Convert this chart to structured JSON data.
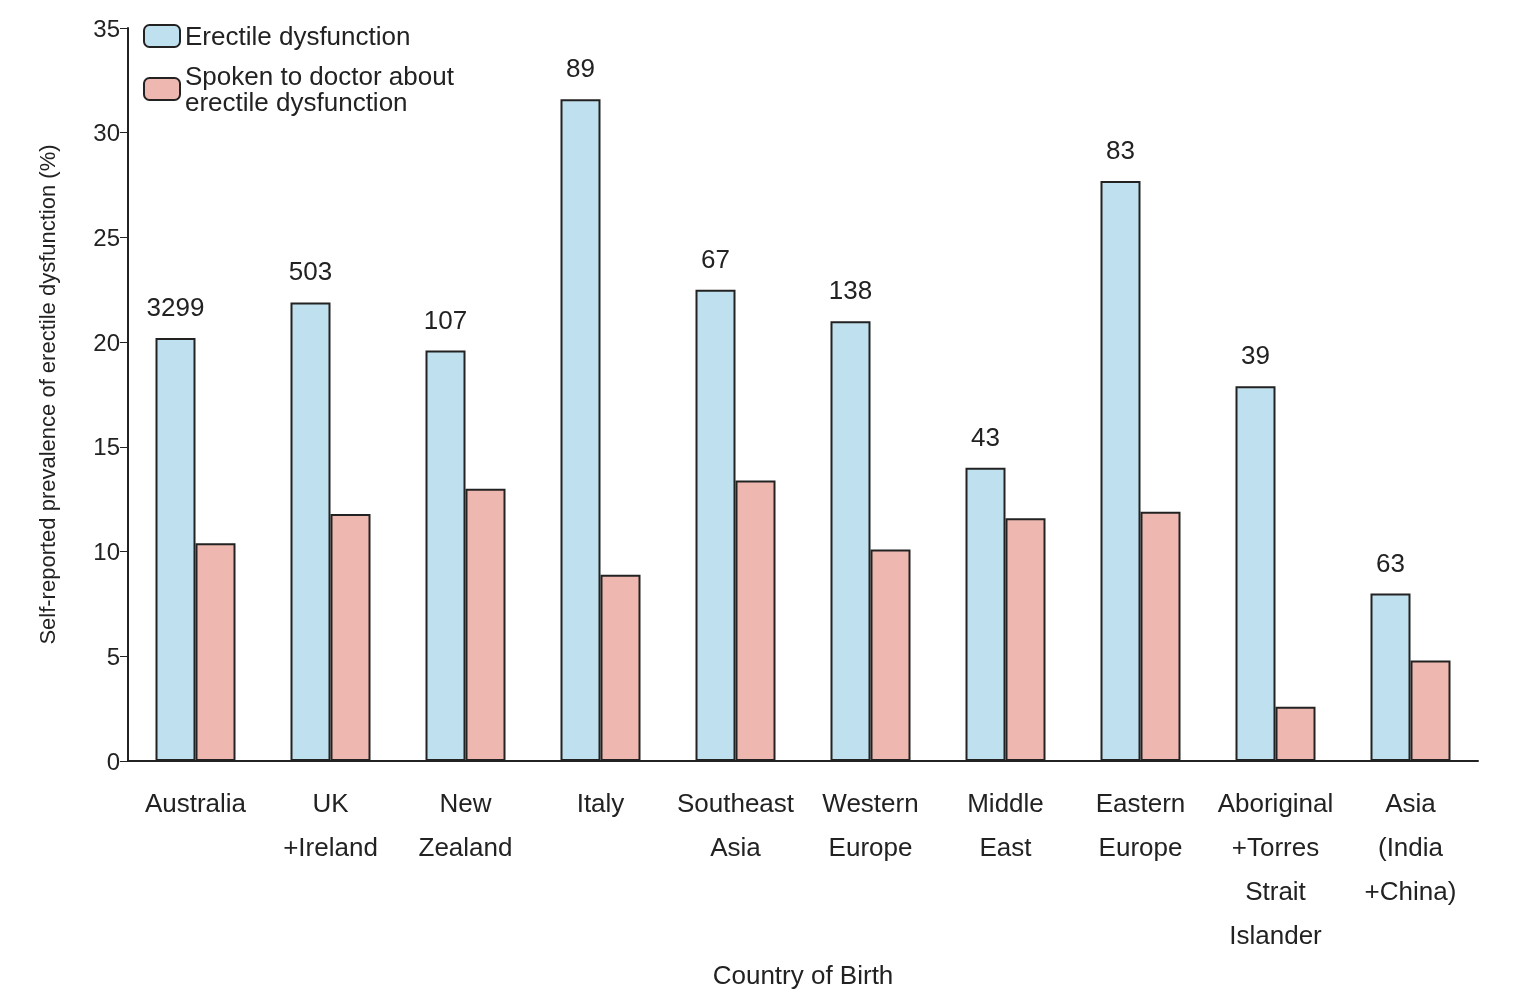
{
  "chart_data": {
    "type": "bar",
    "xlabel": "Country of Birth",
    "ylabel": "Self-reported prevalence of erectile dysfunction (%)",
    "categories": [
      "Australia",
      "UK\n+Ireland",
      "New\nZealand",
      "Italy",
      "Southeast\nAsia",
      "Western\nEurope",
      "Middle\nEast",
      "Eastern\nEurope",
      "Aboriginal\n+Torres\nStrait\nIslander",
      "Asia\n(India\n+China)"
    ],
    "series": [
      {
        "name": "Erectile dysfunction",
        "color": "#bfe0ee",
        "values": [
          20.2,
          21.9,
          19.6,
          31.6,
          22.5,
          21.0,
          14.0,
          27.7,
          17.9,
          8.0
        ]
      },
      {
        "name": "Spoken to doctor about erectile dysfunction",
        "color": "#eeb8b0",
        "values": [
          10.4,
          11.8,
          13.0,
          8.9,
          13.4,
          10.1,
          11.6,
          11.9,
          2.6,
          4.8
        ]
      }
    ],
    "annotations": [
      {
        "text": "3299",
        "x": "Australia",
        "y": 20.2
      },
      {
        "text": "503",
        "x": "UK\n+Ireland",
        "y": 21.9
      },
      {
        "text": "107",
        "x": "New\nZealand",
        "y": 19.6
      },
      {
        "text": "89",
        "x": "Italy",
        "y": 31.6
      },
      {
        "text": "67",
        "x": "Southeast\nAsia",
        "y": 22.5
      },
      {
        "text": "138",
        "x": "Western\nEurope",
        "y": 21.0
      },
      {
        "text": "43",
        "x": "Middle\nEast",
        "y": 14.0
      },
      {
        "text": "83",
        "x": "Eastern\nEurope",
        "y": 27.7
      },
      {
        "text": "39",
        "x": "Aboriginal\n+Torres\nStrait\nIslander",
        "y": 17.9
      },
      {
        "text": "63",
        "x": "Asia\n(India\n+China)",
        "y": 8.0
      }
    ],
    "ylim": [
      0,
      35
    ],
    "yticks": [
      0,
      5,
      10,
      15,
      20,
      25,
      30,
      35
    ],
    "grid": false,
    "legend": "top left"
  }
}
